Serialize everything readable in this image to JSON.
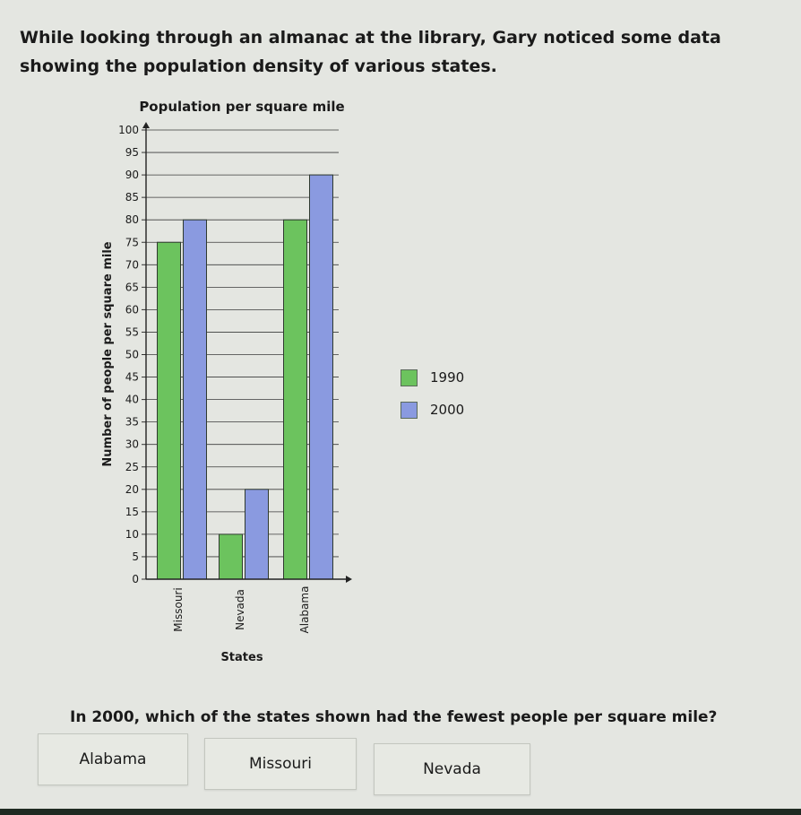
{
  "intro_text": "While looking through an almanac at the library, Gary noticed some data showing the population density of various states.",
  "question_text": "In 2000, which of the states shown had the fewest people per square mile?",
  "answers": [
    "Alabama",
    "Missouri",
    "Nevada"
  ],
  "colors": {
    "series_1990": "#6cc35e",
    "series_2000": "#8a9ae0"
  },
  "chart_data": {
    "type": "bar",
    "title": "Population per square mile",
    "xlabel": "States",
    "ylabel": "Number of people per square mile",
    "categories": [
      "Missouri",
      "Nevada",
      "Alabama"
    ],
    "series": [
      {
        "name": "1990",
        "values": [
          75,
          10,
          80
        ]
      },
      {
        "name": "2000",
        "values": [
          80,
          20,
          90
        ]
      }
    ],
    "ylim": [
      0,
      100
    ],
    "yticks": [
      0,
      5,
      10,
      15,
      20,
      25,
      30,
      35,
      40,
      45,
      50,
      55,
      60,
      65,
      70,
      75,
      80,
      85,
      90,
      95,
      100
    ],
    "grid": true,
    "legend": "right"
  }
}
